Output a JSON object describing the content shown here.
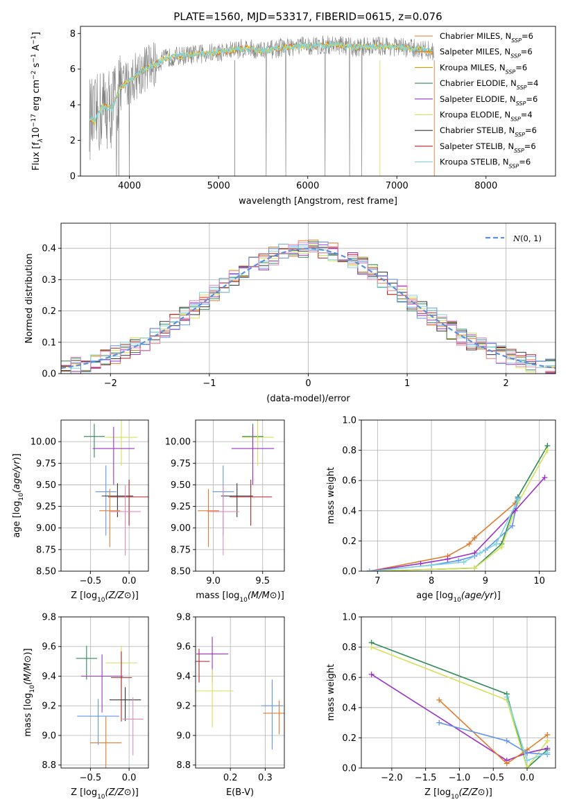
{
  "page": {
    "title": "PLATE=1560, MJD=53317, FIBERID=0615, z=0.076"
  },
  "colors": {
    "observed": "#808080",
    "models": [
      "#e07b2c",
      "#2e8b57",
      "#9b30c8",
      "#d4e157",
      "#333333",
      "#b22222",
      "#7fd4e0",
      "#6495ed",
      "#e88ab8"
    ]
  },
  "chart_data": [
    {
      "id": "spectrum",
      "type": "line",
      "title": "PLATE=1560, MJD=53317, FIBERID=0615, z=0.076",
      "xlabel": "wavelength [Angstrom, rest frame]",
      "ylabel": "Flux [f",
      "ylabel_parts": [
        "Flux [f",
        "λ",
        "10",
        "−17",
        " erg cm",
        "−2",
        " s",
        "−1",
        " A",
        "−1",
        "]"
      ],
      "xlim": [
        3450,
        8780
      ],
      "ylim": [
        0,
        8.4
      ],
      "xticks": [
        4000,
        5000,
        6000,
        7000,
        8000
      ],
      "yticks": [
        0,
        2,
        4,
        6,
        8
      ],
      "grid": false,
      "legend_placement": "right",
      "legend": [
        {
          "label": "Chabrier MILES, N",
          "sub": "SSP",
          "suffix": "=6",
          "color": "#e07b2c"
        },
        {
          "label": "Salpeter MILES, N",
          "sub": "SSP",
          "suffix": "=6",
          "color": "#e07b2c"
        },
        {
          "label": "Kroupa MILES, N",
          "sub": "SSP",
          "suffix": "=6",
          "color": "#c8a000"
        },
        {
          "label": "Chabrier ELODIE, N",
          "sub": "SSP",
          "suffix": "=4",
          "color": "#2e8b57"
        },
        {
          "label": "Salpeter ELODIE, N",
          "sub": "SSP",
          "suffix": "=6",
          "color": "#9b30c8"
        },
        {
          "label": "Kroupa ELODIE, N",
          "sub": "SSP",
          "suffix": "=4",
          "color": "#d4e157"
        },
        {
          "label": "Chabrier STELIB, N",
          "sub": "SSP",
          "suffix": "=6",
          "color": "#333333"
        },
        {
          "label": "Salpeter STELIB, N",
          "sub": "SSP",
          "suffix": "=6",
          "color": "#b22222"
        },
        {
          "label": "Kroupa STELIB, N",
          "sub": "SSP",
          "suffix": "=6",
          "color": "#7fd4e0"
        }
      ],
      "continuum": {
        "x": [
          3550,
          3600,
          3700,
          3800,
          3900,
          4000,
          4100,
          4200,
          4300,
          4400,
          4500,
          4700,
          4900,
          5100,
          5300,
          5500,
          5700,
          5900,
          6100,
          6300,
          6500,
          6700,
          6900,
          7100,
          7300,
          7400
        ],
        "y": [
          3.3,
          3.0,
          3.9,
          3.8,
          5.0,
          5.3,
          5.8,
          6.1,
          6.3,
          6.6,
          6.7,
          6.8,
          6.9,
          7.0,
          7.2,
          7.0,
          7.2,
          7.3,
          7.3,
          7.4,
          7.2,
          7.3,
          7.3,
          7.2,
          7.1,
          7.0
        ]
      }
    },
    {
      "id": "residuals",
      "type": "line",
      "xlabel": "(data-model)/error",
      "ylabel": "Normed distribution",
      "xlim": [
        -2.5,
        2.5
      ],
      "ylim": [
        0,
        0.48
      ],
      "xticks": [
        -2,
        -1,
        0,
        1,
        2
      ],
      "yticks": [
        0.0,
        0.1,
        0.2,
        0.3,
        0.4
      ],
      "grid": true,
      "legend_placement": "top-right",
      "legend": [
        {
          "label": "N(0,1)",
          "color": "#5b8fd9"
        }
      ],
      "gaussian": {
        "mean": 0,
        "sigma": 1
      }
    },
    {
      "id": "age-vs-Z",
      "type": "scatter",
      "xlabel": "Z [log",
      "ylabel": "age  [log",
      "xlim": [
        -0.88,
        0.25
      ],
      "ylim": [
        8.5,
        10.25
      ],
      "xticks": [
        -0.5,
        0.0
      ],
      "yticks": [
        8.5,
        8.75,
        9.0,
        9.25,
        9.5,
        9.75,
        10.0
      ],
      "grid": true,
      "points": [
        {
          "x": -0.45,
          "y": 10.06,
          "color": "#2e8b57"
        },
        {
          "x": -0.1,
          "y": 10.05,
          "color": "#d4e157"
        },
        {
          "x": -0.2,
          "y": 9.92,
          "color": "#9b30c8"
        },
        {
          "x": -0.3,
          "y": 9.42,
          "color": "#6495ed"
        },
        {
          "x": -0.15,
          "y": 9.37,
          "color": "#333333"
        },
        {
          "x": 0.0,
          "y": 9.36,
          "color": "#b22222"
        },
        {
          "x": -0.25,
          "y": 9.2,
          "color": "#e07b2c"
        },
        {
          "x": -0.05,
          "y": 9.19,
          "color": "#e88ab8"
        }
      ]
    },
    {
      "id": "age-vs-mass",
      "type": "scatter",
      "xlabel": "mass [log",
      "ylabel": "",
      "xlim": [
        8.82,
        9.72
      ],
      "ylim": [
        8.5,
        10.25
      ],
      "xticks": [
        9.0,
        9.5
      ],
      "yticks": [
        8.5,
        8.75,
        9.0,
        9.25,
        9.5,
        9.75,
        10.0
      ],
      "grid": true,
      "points": [
        {
          "x": 9.4,
          "y": 10.06,
          "color": "#2e8b57"
        },
        {
          "x": 9.45,
          "y": 10.05,
          "color": "#d4e157"
        },
        {
          "x": 9.4,
          "y": 9.92,
          "color": "#9b30c8"
        },
        {
          "x": 9.1,
          "y": 9.42,
          "color": "#6495ed"
        },
        {
          "x": 9.24,
          "y": 9.37,
          "color": "#333333"
        },
        {
          "x": 9.38,
          "y": 9.36,
          "color": "#b22222"
        },
        {
          "x": 8.95,
          "y": 9.2,
          "color": "#e07b2c"
        },
        {
          "x": 9.1,
          "y": 9.19,
          "color": "#e88ab8"
        }
      ]
    },
    {
      "id": "massweight-vs-age",
      "type": "line",
      "xlabel": "age  [log",
      "ylabel": "mass weight",
      "xlim": [
        6.7,
        10.3
      ],
      "ylim": [
        0,
        1.0
      ],
      "xticks": [
        7,
        8,
        9,
        10
      ],
      "yticks": [
        0.0,
        0.2,
        0.4,
        0.6,
        0.8,
        1.0
      ],
      "grid": true,
      "series": [
        {
          "color": "#2e8b57",
          "x": [
            6.85,
            8.8,
            9.3,
            9.6,
            10.15
          ],
          "y": [
            0.0,
            0.02,
            0.18,
            0.49,
            0.83
          ]
        },
        {
          "color": "#d4e157",
          "x": [
            6.85,
            8.8,
            9.3,
            9.6,
            10.15
          ],
          "y": [
            0.0,
            0.02,
            0.16,
            0.45,
            0.8
          ]
        },
        {
          "color": "#e07b2c",
          "x": [
            6.85,
            8.3,
            8.7,
            8.8,
            9.55
          ],
          "y": [
            0.0,
            0.1,
            0.18,
            0.22,
            0.45
          ]
        },
        {
          "color": "#6495ed",
          "x": [
            6.85,
            8.0,
            8.5,
            8.8,
            9.0,
            9.5,
            9.6
          ],
          "y": [
            0.0,
            0.04,
            0.07,
            0.1,
            0.14,
            0.3,
            0.48
          ]
        },
        {
          "color": "#9b30c8",
          "x": [
            6.85,
            7.8,
            8.3,
            8.8,
            9.55,
            10.1
          ],
          "y": [
            0.0,
            0.05,
            0.08,
            0.12,
            0.4,
            0.62
          ]
        },
        {
          "color": "#7fd4e0",
          "x": [
            6.85,
            8.6,
            8.9,
            9.2,
            9.6
          ],
          "y": [
            0.0,
            0.06,
            0.12,
            0.18,
            0.47
          ]
        }
      ]
    },
    {
      "id": "mass-vs-Z",
      "type": "scatter",
      "xlabel": "Z [log",
      "ylabel": "mass [log",
      "xlim": [
        -0.88,
        0.25
      ],
      "ylim": [
        8.78,
        9.8
      ],
      "xticks": [
        -0.5,
        0.0
      ],
      "yticks": [
        8.8,
        9.0,
        9.2,
        9.4,
        9.6,
        9.8
      ],
      "grid": true,
      "points": [
        {
          "x": -0.55,
          "y": 9.52,
          "color": "#2e8b57"
        },
        {
          "x": -0.1,
          "y": 9.49,
          "color": "#d4e157"
        },
        {
          "x": -0.35,
          "y": 9.4,
          "color": "#9b30c8"
        },
        {
          "x": -0.1,
          "y": 9.39,
          "color": "#b22222"
        },
        {
          "x": -0.05,
          "y": 9.24,
          "color": "#333333"
        },
        {
          "x": -0.4,
          "y": 9.13,
          "color": "#6495ed"
        },
        {
          "x": 0.05,
          "y": 9.11,
          "color": "#e88ab8"
        },
        {
          "x": -0.3,
          "y": 8.95,
          "color": "#e07b2c"
        }
      ]
    },
    {
      "id": "mass-vs-EBV",
      "type": "scatter",
      "xlabel": "E(B-V)",
      "ylabel": "",
      "xlim": [
        0.1,
        0.355
      ],
      "ylim": [
        8.78,
        9.8
      ],
      "xticks": [
        0.2,
        0.3
      ],
      "yticks": [
        8.8,
        9.0,
        9.2,
        9.4,
        9.6,
        9.8
      ],
      "grid": true,
      "points": [
        {
          "x": 0.11,
          "y": 9.5,
          "color": "#b22222"
        },
        {
          "x": 0.148,
          "y": 9.55,
          "color": "#9b30c8"
        },
        {
          "x": 0.148,
          "y": 9.3,
          "color": "#d4e157"
        },
        {
          "x": 0.32,
          "y": 9.2,
          "color": "#6495ed"
        },
        {
          "x": 0.34,
          "y": 9.15,
          "color": "#e07b2c"
        }
      ]
    },
    {
      "id": "massweight-vs-Z",
      "type": "line",
      "xlabel": "Z [log",
      "ylabel": "mass weight",
      "xlim": [
        -2.45,
        0.42
      ],
      "ylim": [
        0,
        1.0
      ],
      "xticks": [
        -2.0,
        -1.5,
        -1.0,
        -0.5,
        0.0
      ],
      "yticks": [
        0.0,
        0.2,
        0.4,
        0.6,
        0.8,
        1.0
      ],
      "grid": true,
      "series": [
        {
          "color": "#2e8b57",
          "x": [
            -2.3,
            -0.3,
            0.0,
            0.3
          ],
          "y": [
            0.83,
            0.49,
            0.0,
            0.12
          ]
        },
        {
          "color": "#d4e157",
          "x": [
            -2.3,
            -0.3,
            0.0,
            0.3
          ],
          "y": [
            0.8,
            0.45,
            0.0,
            0.18
          ]
        },
        {
          "color": "#9b30c8",
          "x": [
            -2.3,
            -0.3,
            0.0,
            0.3
          ],
          "y": [
            0.62,
            0.05,
            0.1,
            0.13
          ]
        },
        {
          "color": "#e07b2c",
          "x": [
            -1.3,
            -0.3,
            0.0,
            0.3
          ],
          "y": [
            0.45,
            0.03,
            0.12,
            0.22
          ]
        },
        {
          "color": "#6495ed",
          "x": [
            -1.3,
            -0.3,
            0.0,
            0.3
          ],
          "y": [
            0.3,
            0.18,
            0.1,
            0.09
          ]
        },
        {
          "color": "#7fd4e0",
          "x": [
            -0.3,
            0.0,
            0.3
          ],
          "y": [
            0.47,
            0.05,
            0.1
          ]
        }
      ]
    }
  ]
}
